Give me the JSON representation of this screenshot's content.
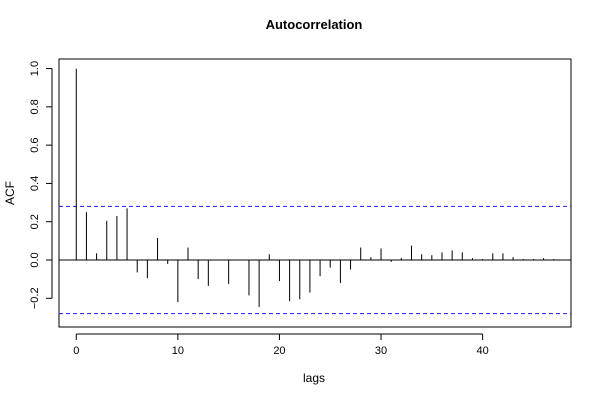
{
  "chart_data": {
    "type": "bar",
    "title": "Autocorrelation",
    "xlabel": "lags",
    "ylabel": "ACF",
    "xlim": [
      -1.7,
      48.7
    ],
    "ylim": [
      -0.35,
      1.05
    ],
    "x_ticks": [
      0,
      10,
      20,
      30,
      40
    ],
    "y_ticks": [
      -0.2,
      0.0,
      0.2,
      0.4,
      0.6,
      0.8,
      1.0
    ],
    "y_tick_labels": [
      "−0.2",
      "0.0",
      "0.2",
      "0.4",
      "0.6",
      "0.8",
      "1.0"
    ],
    "confidence_bounds": [
      0.28,
      -0.28
    ],
    "bound_color": "#1a1aff",
    "grid": false,
    "lags": [
      0,
      1,
      2,
      3,
      4,
      5,
      6,
      7,
      8,
      9,
      10,
      11,
      12,
      13,
      14,
      15,
      16,
      17,
      18,
      19,
      20,
      21,
      22,
      23,
      24,
      25,
      26,
      27,
      28,
      29,
      30,
      31,
      32,
      33,
      34,
      35,
      36,
      37,
      38,
      39,
      40,
      41,
      42,
      43,
      44,
      45,
      46,
      47
    ],
    "values": [
      1.0,
      0.25,
      0.035,
      0.205,
      0.23,
      0.27,
      -0.065,
      -0.095,
      0.115,
      -0.02,
      -0.22,
      0.065,
      -0.1,
      -0.135,
      0.0,
      -0.125,
      0.0,
      -0.185,
      -0.245,
      0.03,
      -0.11,
      -0.215,
      -0.205,
      -0.17,
      -0.085,
      -0.04,
      -0.12,
      -0.05,
      0.065,
      0.015,
      0.06,
      -0.01,
      0.01,
      0.075,
      0.03,
      0.025,
      0.04,
      0.05,
      0.04,
      0.01,
      0.005,
      0.035,
      0.035,
      0.015,
      0.005,
      0.005,
      0.01,
      0.005
    ]
  }
}
